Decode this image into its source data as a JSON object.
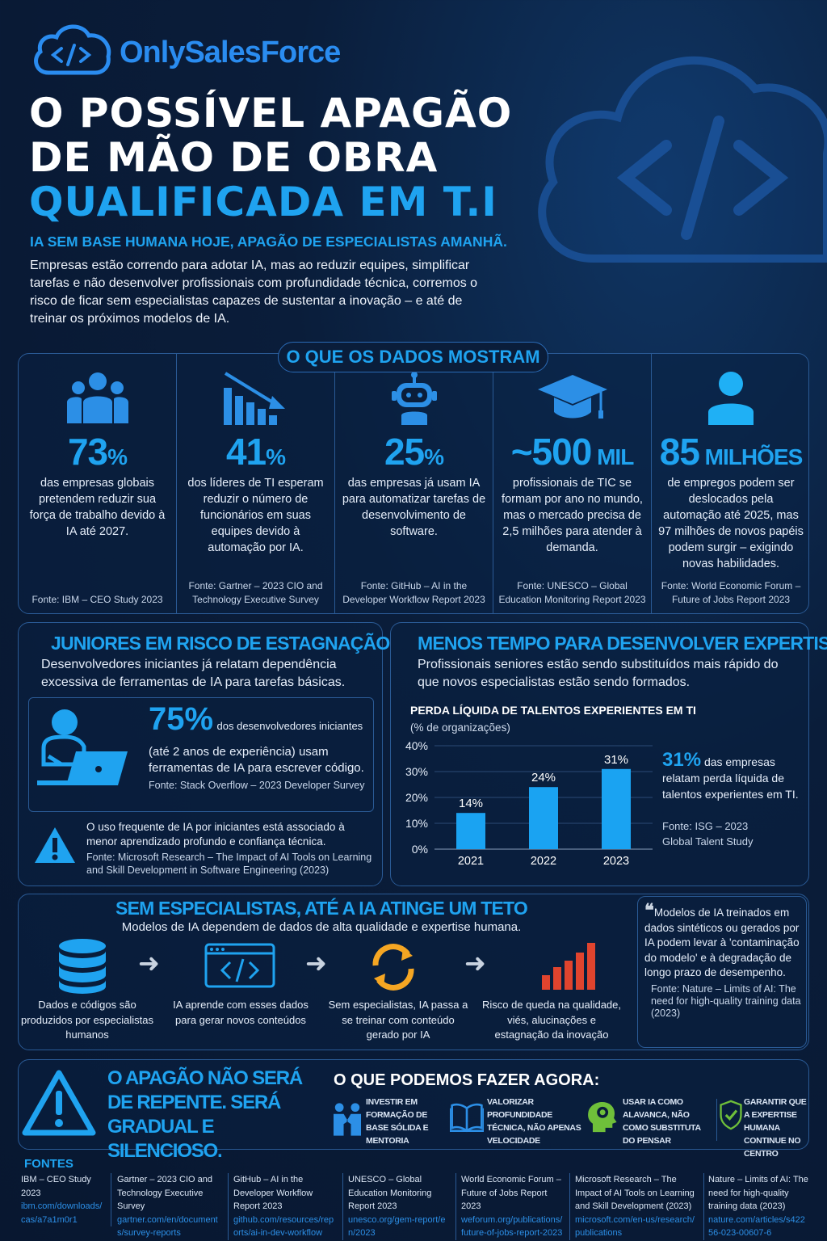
{
  "brand": {
    "name": "OnlySalesForce",
    "accent": "#1fa3f0",
    "background": "#0a1d3a"
  },
  "hero": {
    "title_lines": [
      "O POSSÍVEL APAGÃO",
      "DE MÃO DE OBRA",
      "QUALIFICADA EM T.I"
    ],
    "subtitle": "IA SEM BASE HUMANA HOJE, APAGÃO DE ESPECIALISTAS AMANHÃ.",
    "body": "Empresas estão correndo para adotar IA, mas ao reduzir equipes, simplificar tarefas e não desenvolver profissionais com profundidade técnica, corremos o risco de ficar sem especialistas capazes de sustentar a inovação – e até de treinar os próximos modelos de IA."
  },
  "data_section": {
    "label": "O QUE OS DADOS MOSTRAM",
    "stats": [
      {
        "icon": "people-group-icon",
        "value": "73",
        "unit": "%",
        "desc": "das empresas globais pretendem reduzir sua força de trabalho devido à IA até 2027.",
        "source": "Fonte: IBM – CEO Study 2023"
      },
      {
        "icon": "declining-bar-chart-icon",
        "value": "41",
        "unit": "%",
        "desc": "dos líderes de TI esperam reduzir o número de funcionários em suas equipes devido à automação por IA.",
        "source": "Fonte: Gartner – 2023 CIO and Technology Executive Survey"
      },
      {
        "icon": "robot-icon",
        "value": "25",
        "unit": "%",
        "desc": "das empresas já usam IA para automatizar tarefas de desenvolvimento de software.",
        "source": "Fonte: GitHub – AI in the Developer Workflow Report 2023"
      },
      {
        "icon": "graduation-cap-icon",
        "value": "~500",
        "unit": " MIL",
        "desc": "profissionais de TIC se formam por ano no mundo, mas o mercado precisa de 2,5 milhões para atender à demanda.",
        "source": "Fonte: UNESCO – Global Education Monitoring Report 2023"
      },
      {
        "icon": "person-icon",
        "value": "85",
        "unit": " MILHÕES",
        "desc": "de empregos podem ser deslocados pela automação até 2025, mas 97 milhões de novos papéis podem surgir – exigindo novas habilidades.",
        "source": "Fonte: World Economic Forum – Future of Jobs Report 2023"
      }
    ]
  },
  "juniors": {
    "title": "JUNIORES EM RISCO DE ESTAGNAÇÃO",
    "intro": "Desenvolvedores iniciantes já relatam dependência excessiva de ferramentas de IA para tarefas básicas.",
    "stat_value": "75%",
    "stat_text_1": "dos desenvolvedores iniciantes",
    "stat_text_2": "(até 2 anos de experiência) usam ferramentas de IA para escrever código.",
    "stat_source": "Fonte: Stack Overflow – 2023 Developer Survey",
    "warning": "O uso frequente de IA por iniciantes está associado à menor aprendizado profundo e confiança técnica.",
    "warning_source": "Fonte: Microsoft Research – The Impact of AI Tools on Learning and Skill Development in Software Engineering (2023)"
  },
  "expertise": {
    "title": "MENOS TEMPO PARA DESENVOLVER EXPERTISE",
    "intro": "Profissionais seniores estão sendo substituídos mais rápido do que novos especialistas estão sendo formados.",
    "highlight_value": "31%",
    "highlight_text": "das empresas relatam perda líquida de talentos experientes em TI.",
    "source": "Fonte: ISG – 2023 Global Talent Study"
  },
  "chart_data": {
    "type": "bar",
    "title": "PERDA LÍQUIDA DE TALENTOS EXPERIENTES EM TI",
    "subtitle": "(% de organizações)",
    "categories": [
      "2021",
      "2022",
      "2023"
    ],
    "values": [
      14,
      24,
      31
    ],
    "data_labels": [
      "14%",
      "24%",
      "31%"
    ],
    "yticks": [
      "0%",
      "10%",
      "20%",
      "30%",
      "40%"
    ],
    "ylim": [
      0,
      40
    ],
    "grid": true,
    "bar_color": "#1aa3f2"
  },
  "pipeline": {
    "title": "SEM ESPECIALISTAS, ATÉ A IA ATINGE UM TETO",
    "intro": "Modelos de IA dependem de dados de alta qualidade e expertise humana.",
    "steps": [
      {
        "icon": "database-icon",
        "text": "Dados e códigos são produzidos por especialistas humanos"
      },
      {
        "icon": "code-window-icon",
        "text": "IA aprende com esses dados para gerar novos conteúdos"
      },
      {
        "icon": "recycle-arrows-icon",
        "text": "Sem especialistas, IA passa a se treinar com conteúdo gerado por IA"
      },
      {
        "icon": "rising-bars-icon",
        "text": "Risco de queda na qualidade, viés, alucinações e estagnação da inovação"
      }
    ],
    "quote": "Modelos de IA treinados em dados sintéticos ou gerados por IA podem levar à 'contaminação do modelo' e à degradação de longo prazo de desempenho.",
    "quote_source": "Fonte: Nature – Limits of AI: The need for high-quality training data (2023)"
  },
  "closing": {
    "warning": "O APAGÃO NÃO SERÁ DE REPENTE. SERÁ GRADUAL E SILENCIOSO.",
    "actions_title": "O QUE PODEMOS FAZER AGORA:",
    "actions": [
      {
        "icon": "mentoring-people-icon",
        "text": "INVESTIR EM FORMAÇÃO DE BASE SÓLIDA E MENTORIA"
      },
      {
        "icon": "open-book-icon",
        "text": "VALORIZAR PROFUNDIDADE TÉCNICA, NÃO APENAS VELOCIDADE"
      },
      {
        "icon": "brain-head-icon",
        "text": "USAR IA COMO ALAVANCA, NÃO COMO SUBSTITUTA DO PENSAR"
      },
      {
        "icon": "shield-check-icon",
        "text": "GARANTIR QUE A EXPERTISE HUMANA CONTINUE NO CENTRO"
      }
    ]
  },
  "sources": {
    "title": "FONTES",
    "items": [
      {
        "name": "IBM – CEO Study 2023",
        "link": "ibm.com/downloads/cas/a7a1m0r1"
      },
      {
        "name": "Gartner – 2023 CIO and Technology Executive Survey",
        "link": "gartner.com/en/documents/survey-reports"
      },
      {
        "name": "GitHub – AI in the Developer Workflow Report 2023",
        "link": "github.com/resources/reports/ai-in-dev-workflow"
      },
      {
        "name": "UNESCO – Global Education Monitoring Report 2023",
        "link": "unesco.org/gem-report/en/2023"
      },
      {
        "name": "World Economic Forum – Future of Jobs Report 2023",
        "link": "weforum.org/publications/future-of-jobs-report-2023"
      },
      {
        "name": "Microsoft Research – The Impact of AI Tools on Learning and Skill Development (2023)",
        "link": "microsoft.com/en-us/research/publications"
      },
      {
        "name": "Nature – Limits of AI: The need for high-quality training data (2023)",
        "link": "nature.com/articles/s42256-023-00607-6"
      }
    ]
  }
}
